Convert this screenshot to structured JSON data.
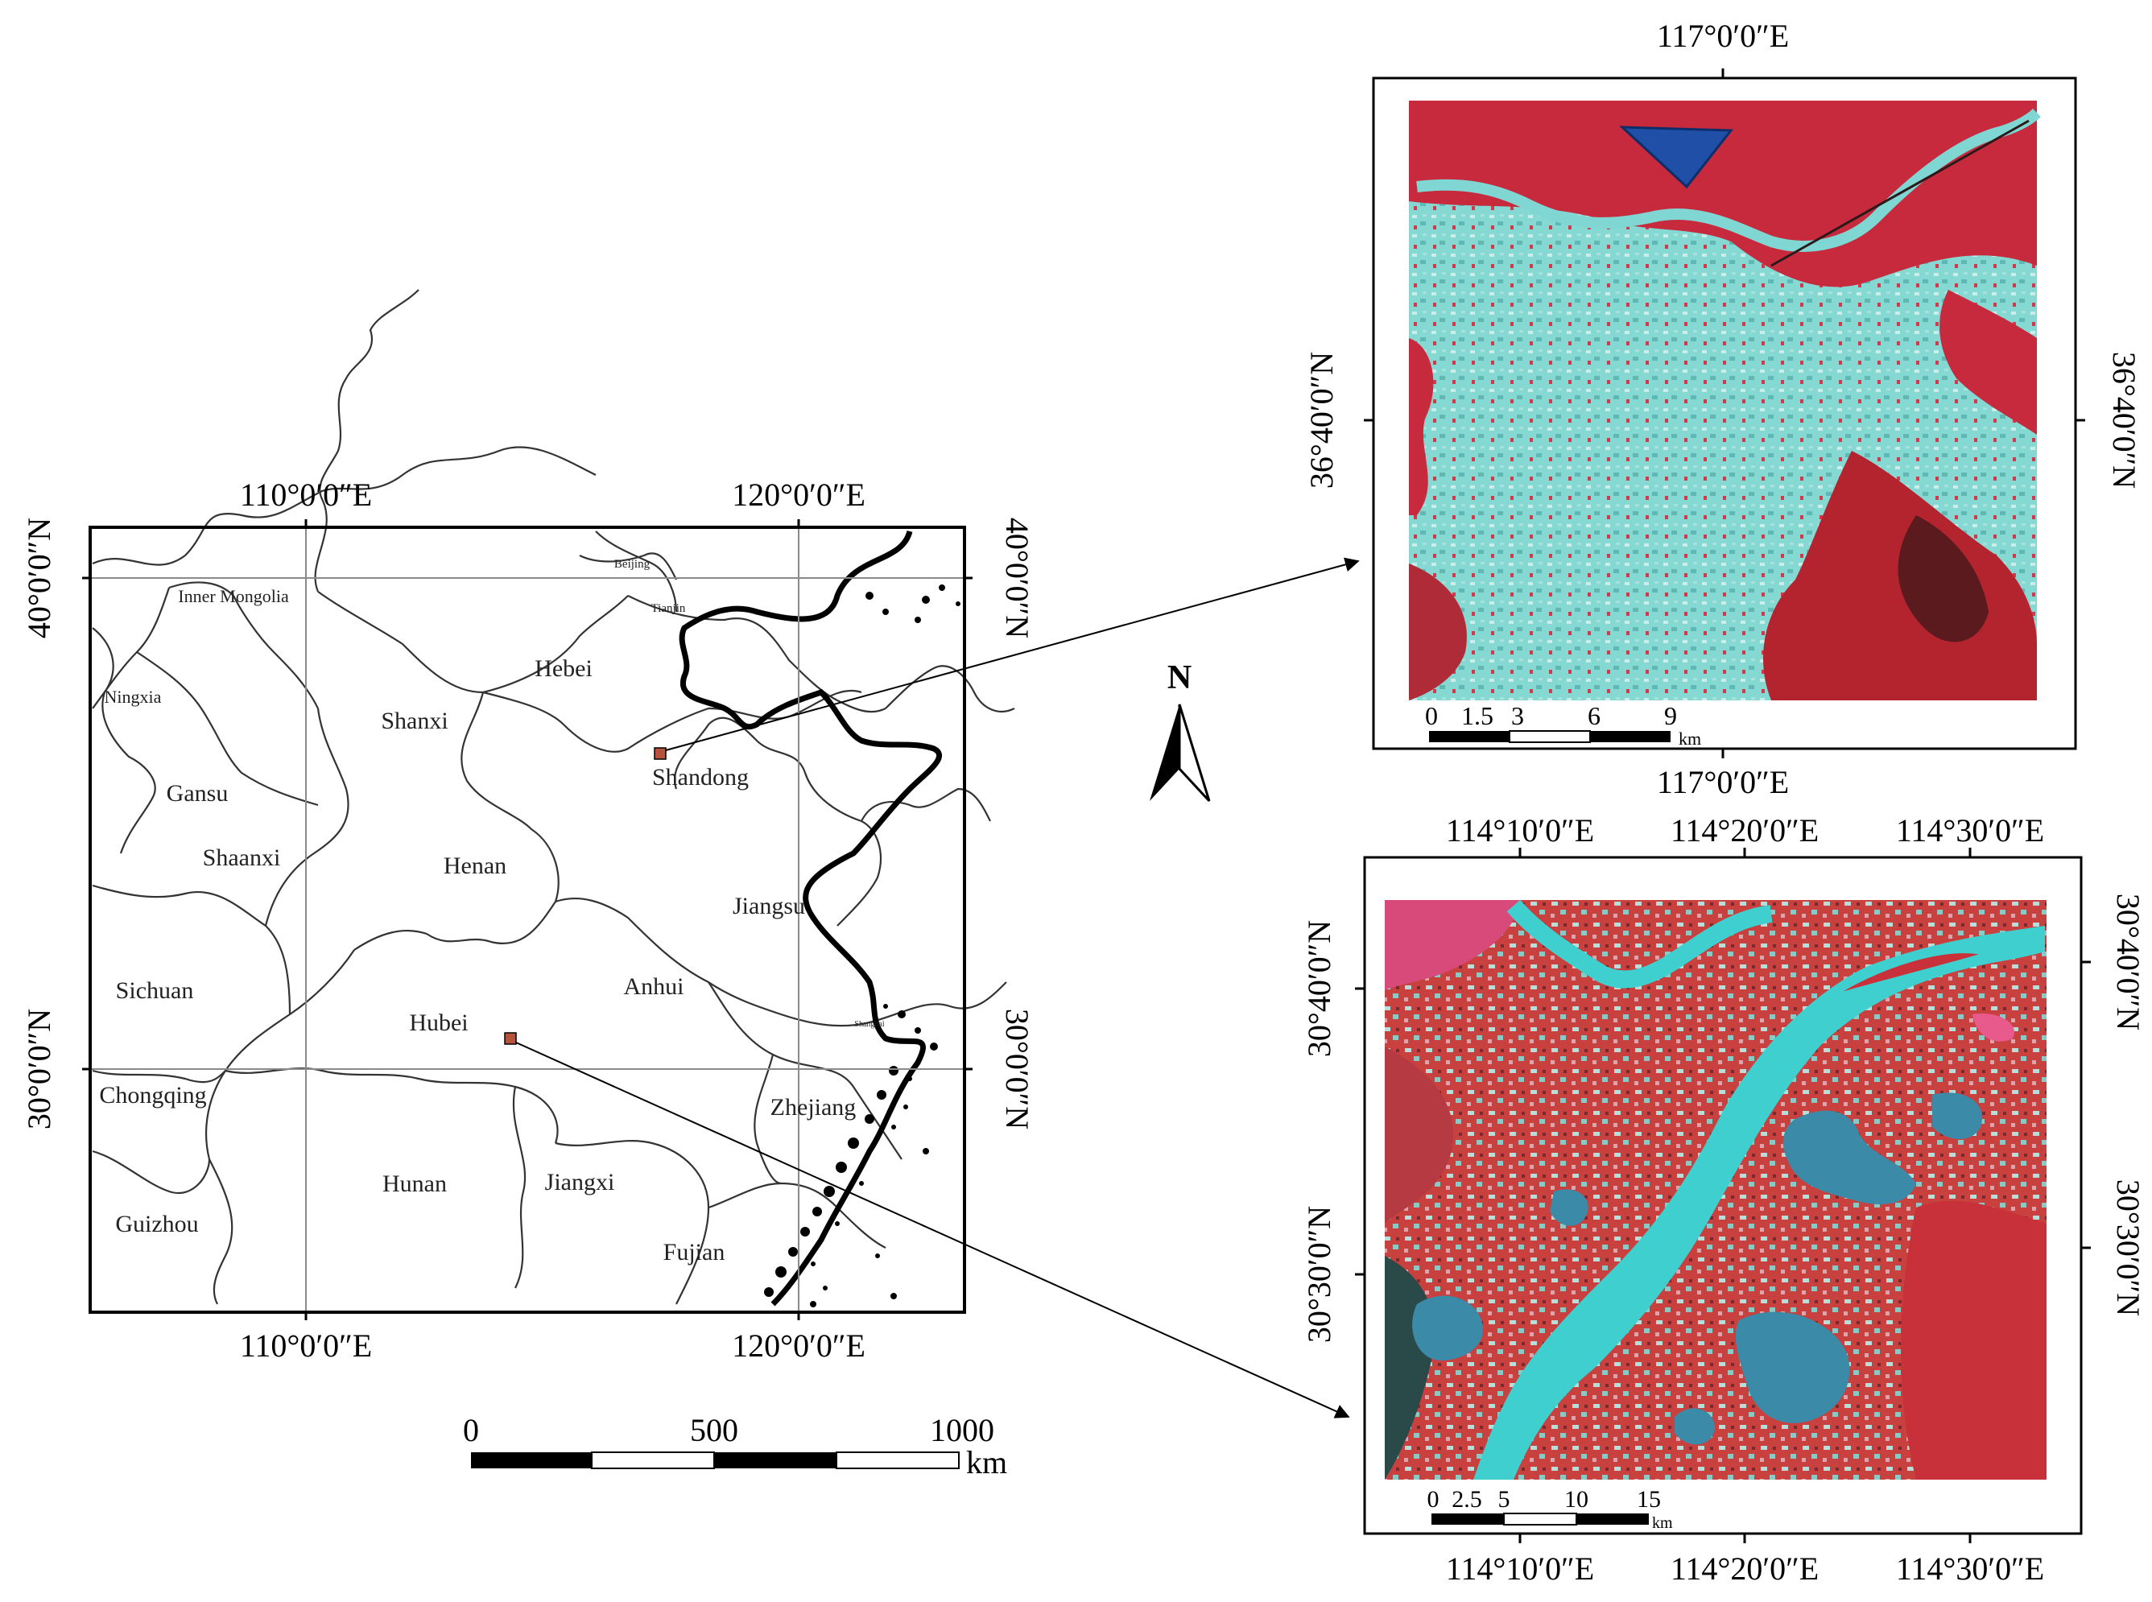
{
  "main_map": {
    "lon_labels": [
      "110°0′0″E",
      "120°0′0″E"
    ],
    "lat_labels": [
      "40°0′0″N",
      "30°0′0″N"
    ],
    "provinces": [
      "Inner Mongolia",
      "Beijing",
      "Tianjin",
      "Ningxia",
      "Hebei",
      "Shanxi",
      "Gansu",
      "Shandong",
      "Shaanxi",
      "Henan",
      "Jiangsu",
      "Sichuan",
      "Anhui",
      "Hubei",
      "Chongqing",
      "Zhejiang",
      "Hunan",
      "Jiangxi",
      "Guizhou",
      "Fujian",
      "Shanghai"
    ],
    "scale_bar": {
      "ticks": [
        "0",
        "500",
        "1000"
      ],
      "unit": "km"
    }
  },
  "north_arrow": {
    "label": "N"
  },
  "inset_jinan": {
    "lon_labels": [
      "117°0′0″E"
    ],
    "lat_labels": [
      "36°40′0″N"
    ],
    "scale_bar": {
      "ticks": [
        "0",
        "1.5",
        "3",
        "6",
        "9"
      ],
      "unit": "km"
    }
  },
  "inset_wuhan": {
    "lon_labels": [
      "114°10′0″E",
      "114°20′0″E",
      "114°30′0″E"
    ],
    "lat_labels": [
      "30°40′0″N",
      "30°30′0″N"
    ],
    "scale_bar": {
      "ticks": [
        "0",
        "2.5",
        "5",
        "10",
        "15"
      ],
      "unit": "km"
    }
  },
  "colors": {
    "frame": "#000000",
    "boundary": "#333333",
    "vegetation_red": "#c8283a",
    "urban_cyan": "#7fd6d2",
    "water_cyan": "#3fcfcf",
    "lake_blue": "#3a8aa8",
    "reservoir_blue": "#1f4fa6",
    "study_marker": "#b5533c"
  }
}
